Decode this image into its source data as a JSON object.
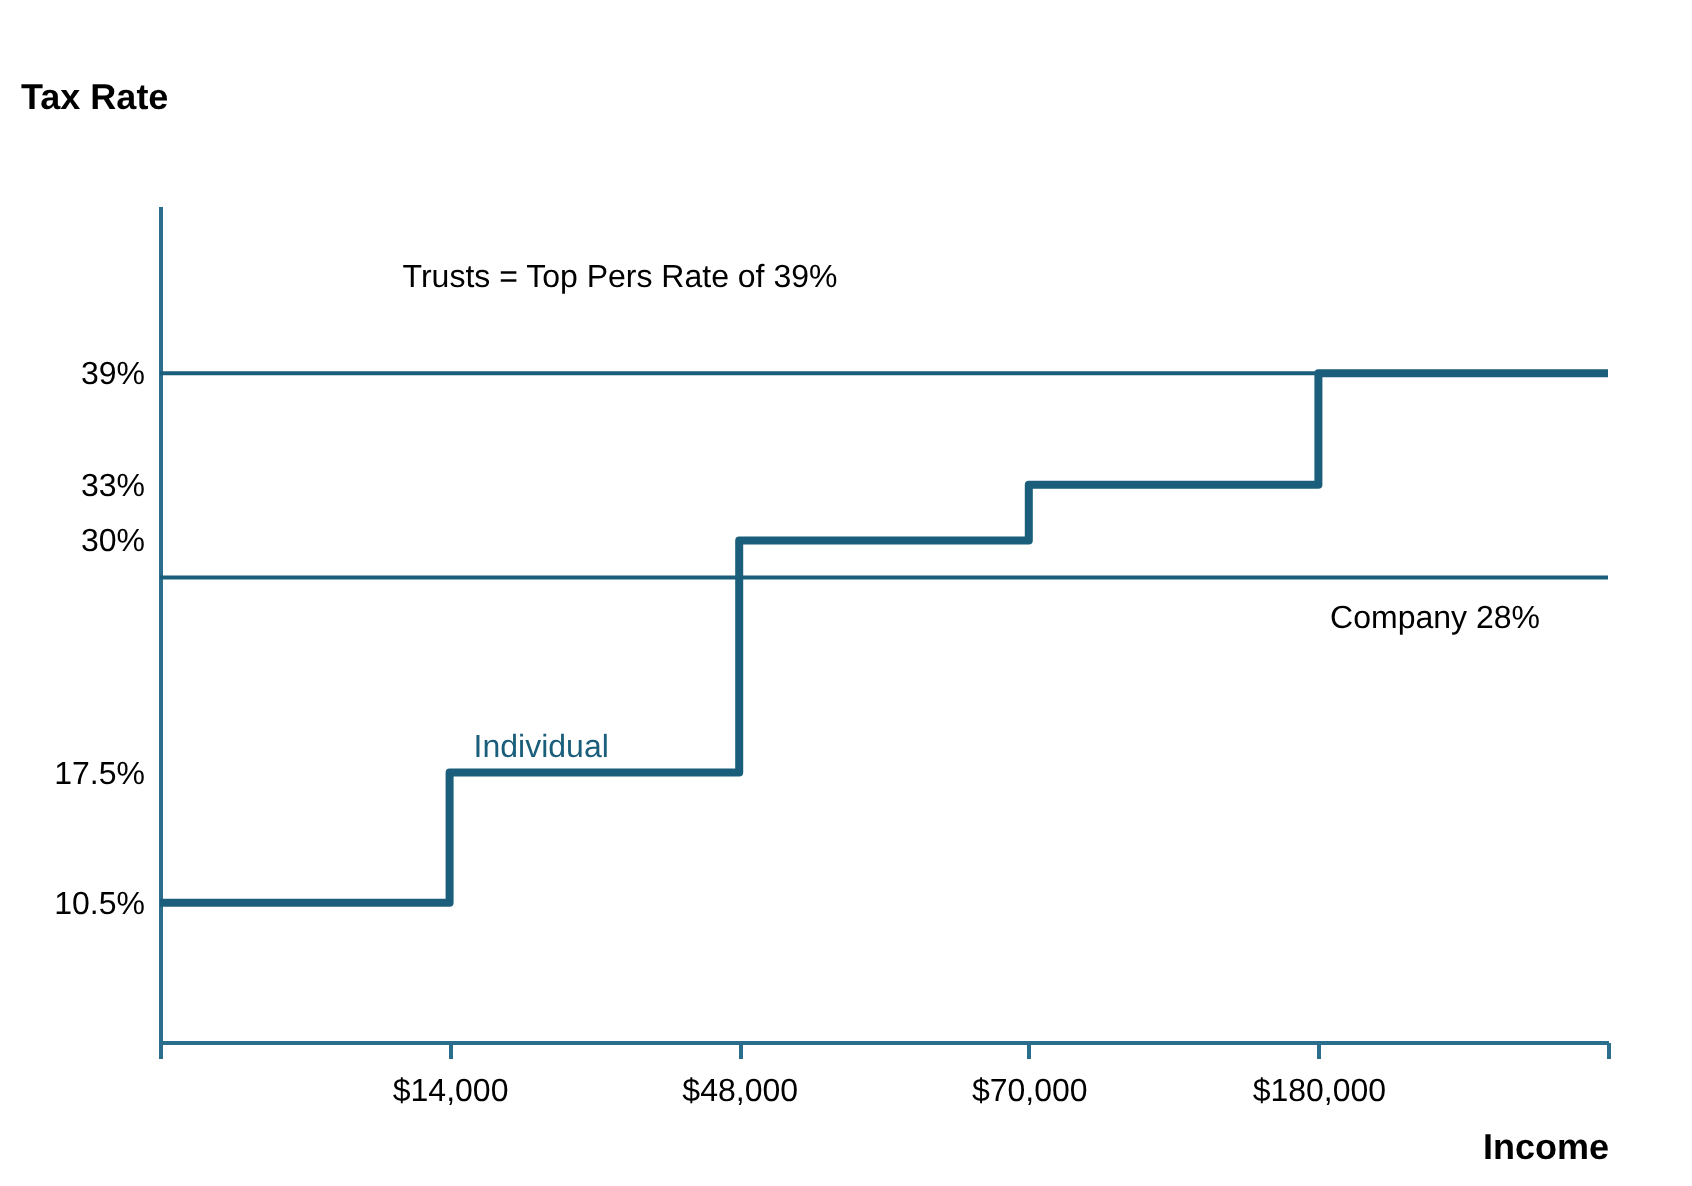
{
  "chart_data": {
    "type": "step",
    "xlabel": "Income",
    "ylabel": "Tax Rate",
    "categories": [
      null,
      "$14,000",
      "$48,000",
      "$70,000",
      "$180,000",
      null
    ],
    "series": [
      {
        "name": "Individual",
        "color": "#1b5e7b",
        "values": [
          10.5,
          17.5,
          30,
          33,
          39,
          39
        ]
      }
    ],
    "ylim": [
      3,
      48
    ],
    "yticks": [
      {
        "value": 10.5,
        "label": "10.5%"
      },
      {
        "value": 17.5,
        "label": "17.5%"
      },
      {
        "value": 30,
        "label": "30%"
      },
      {
        "value": 33,
        "label": "33%"
      },
      {
        "value": 39,
        "label": "39%"
      }
    ],
    "ref_lines": [
      {
        "axis": "y",
        "value": 39,
        "label": "Trusts = Top Pers Rate of 39%",
        "color": "#1b5e7b"
      },
      {
        "axis": "y",
        "value": 28,
        "label": "Company 28%",
        "color": "#1b5e7b"
      }
    ]
  }
}
